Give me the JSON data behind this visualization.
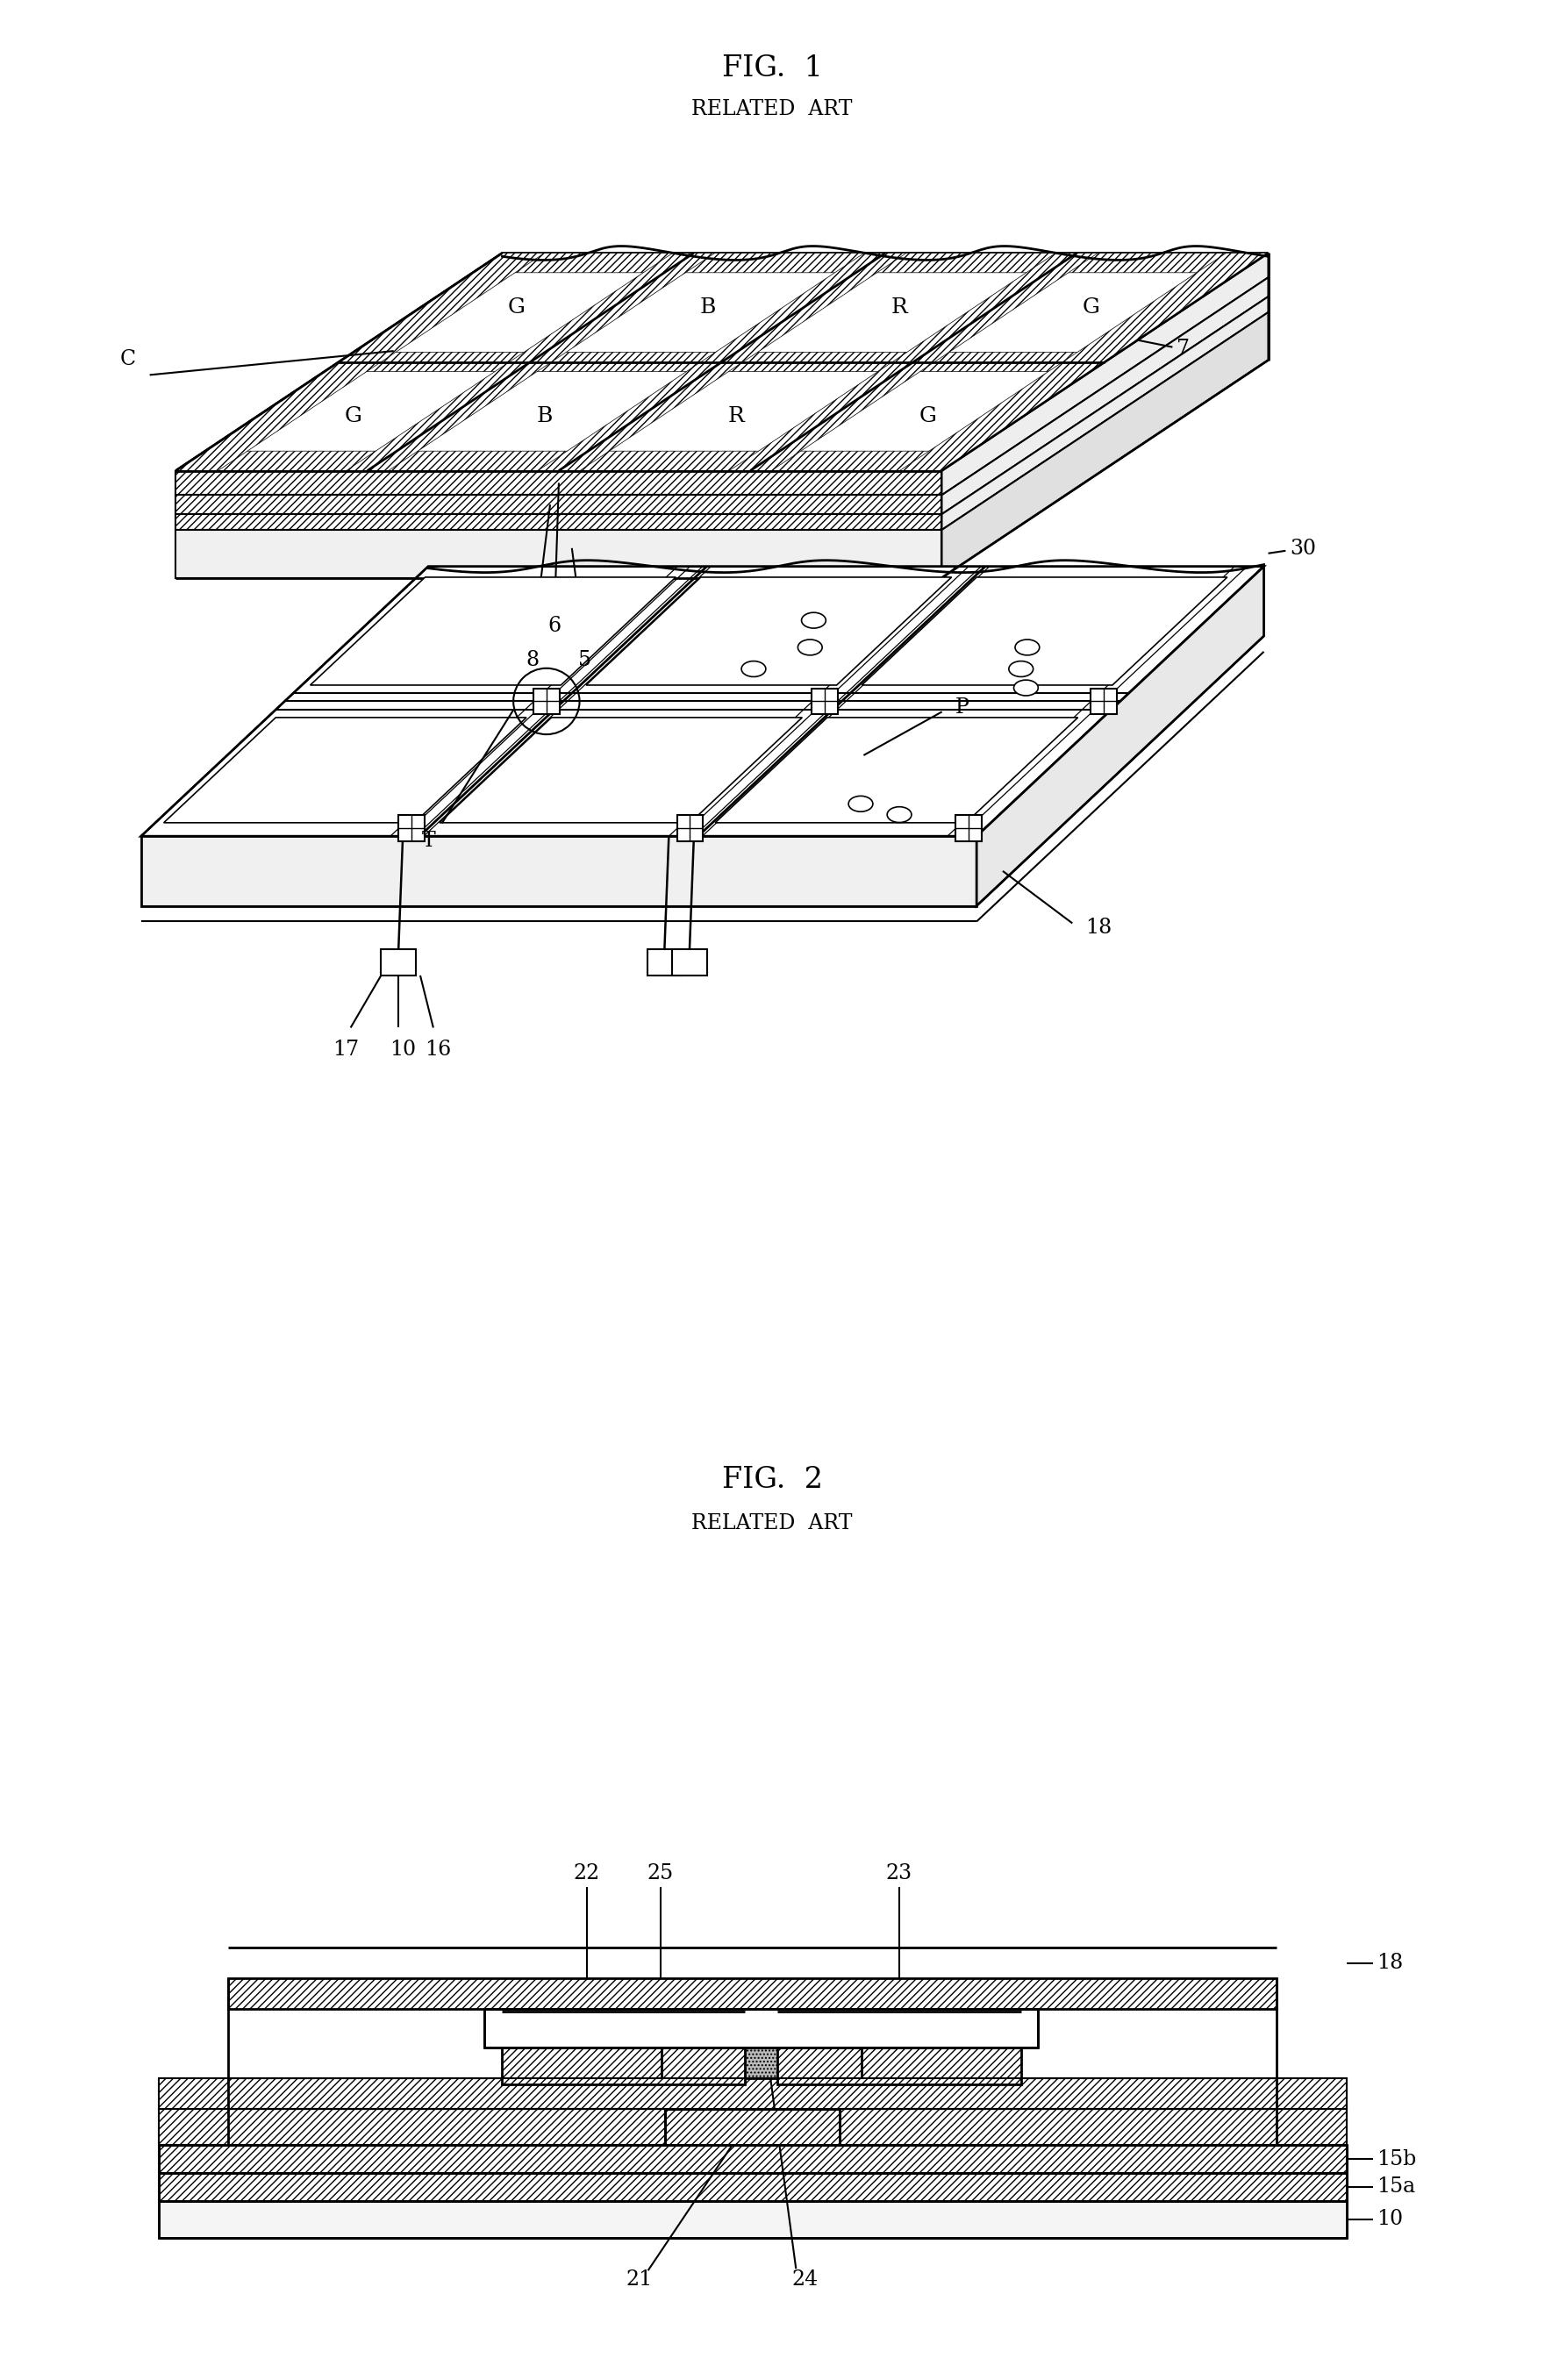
{
  "fig1_title": "FIG.  1",
  "fig1_subtitle": "RELATED  ART",
  "fig2_title": "FIG.  2",
  "fig2_subtitle": "RELATED  ART",
  "background_color": "#ffffff",
  "title_fontsize": 24,
  "subtitle_fontsize": 17,
  "label_fontsize": 17,
  "cell_label_fontsize": 18
}
